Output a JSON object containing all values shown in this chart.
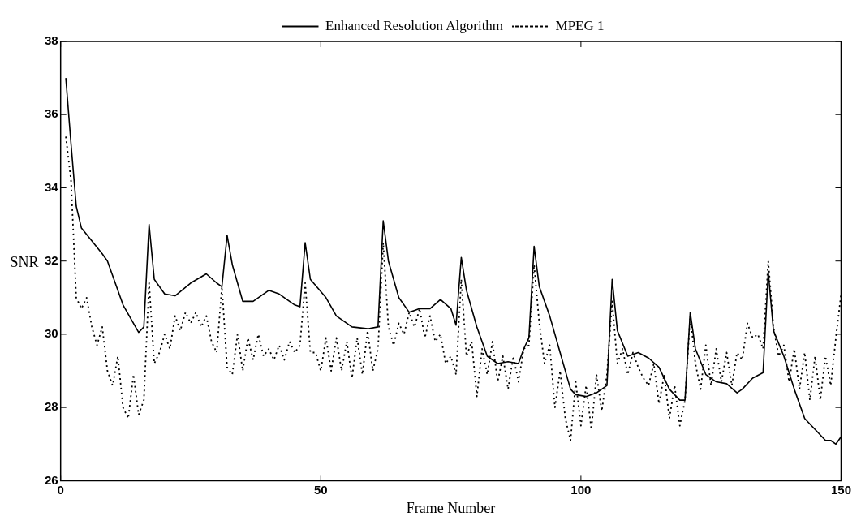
{
  "chart_data": {
    "type": "line",
    "xlabel": "Frame Number",
    "ylabel": "SNR",
    "xlim": [
      0,
      150
    ],
    "xticks": [
      0,
      50,
      100,
      150
    ],
    "ylim": [
      26,
      38
    ],
    "yticks": [
      26,
      28,
      30,
      32,
      34,
      36,
      38
    ],
    "grid": false,
    "legend": "top",
    "marker": "none",
    "series": [
      {
        "name": "Enhanced Resolution Algorithm",
        "color": "#000000",
        "line_style": "solid",
        "x": [
          1,
          2,
          3,
          4,
          8,
          9,
          12,
          15,
          16,
          17,
          18,
          20,
          22,
          25,
          28,
          30,
          31,
          32,
          33,
          35,
          37,
          40,
          42,
          45,
          46,
          47,
          48,
          51,
          53,
          56,
          59,
          61,
          62,
          63,
          65,
          67,
          69,
          71,
          73,
          75,
          76,
          77,
          78,
          80,
          82,
          84,
          86,
          88,
          89,
          90,
          91,
          92,
          94,
          96,
          98,
          99,
          101,
          103,
          105,
          106,
          107,
          109,
          111,
          113,
          115,
          117,
          119,
          120,
          121,
          122,
          124,
          126,
          128,
          130,
          131,
          133,
          135,
          136,
          137,
          139,
          141,
          143,
          145,
          147,
          148,
          149,
          150
        ],
        "values": [
          37.0,
          35.2,
          33.5,
          32.9,
          32.2,
          32.0,
          30.8,
          30.05,
          30.2,
          33.0,
          31.5,
          31.1,
          31.05,
          31.4,
          31.65,
          31.4,
          31.3,
          32.7,
          31.9,
          30.9,
          30.9,
          31.2,
          31.1,
          30.8,
          30.75,
          32.5,
          31.5,
          31.0,
          30.5,
          30.2,
          30.15,
          30.2,
          33.1,
          32.0,
          31.0,
          30.6,
          30.7,
          30.7,
          30.95,
          30.7,
          30.25,
          32.1,
          31.2,
          30.2,
          29.4,
          29.2,
          29.25,
          29.2,
          29.6,
          29.9,
          32.4,
          31.3,
          30.5,
          29.5,
          28.5,
          28.35,
          28.3,
          28.4,
          28.6,
          31.5,
          30.1,
          29.4,
          29.5,
          29.35,
          29.1,
          28.5,
          28.2,
          28.2,
          30.6,
          29.6,
          28.9,
          28.7,
          28.65,
          28.4,
          28.5,
          28.8,
          28.95,
          31.7,
          30.1,
          29.4,
          28.5,
          27.7,
          27.4,
          27.1,
          27.1,
          27.0,
          27.2
        ]
      },
      {
        "name": "MPEG 1",
        "color": "#000000",
        "line_style": "dotted",
        "x": [
          1,
          2,
          3,
          4,
          5,
          6,
          7,
          8,
          9,
          10,
          11,
          12,
          13,
          14,
          15,
          16,
          17,
          18,
          19,
          20,
          21,
          22,
          23,
          24,
          25,
          26,
          27,
          28,
          29,
          30,
          31,
          32,
          33,
          34,
          35,
          36,
          37,
          38,
          39,
          40,
          41,
          42,
          43,
          44,
          45,
          46,
          47,
          48,
          49,
          50,
          51,
          52,
          53,
          54,
          55,
          56,
          57,
          58,
          59,
          60,
          61,
          62,
          63,
          64,
          65,
          66,
          67,
          68,
          69,
          70,
          71,
          72,
          73,
          74,
          75,
          76,
          77,
          78,
          79,
          80,
          81,
          82,
          83,
          84,
          85,
          86,
          87,
          88,
          89,
          90,
          91,
          92,
          93,
          94,
          95,
          96,
          97,
          98,
          99,
          100,
          101,
          102,
          103,
          104,
          105,
          106,
          107,
          108,
          109,
          110,
          111,
          112,
          113,
          114,
          115,
          116,
          117,
          118,
          119,
          120,
          121,
          122,
          123,
          124,
          125,
          126,
          127,
          128,
          129,
          130,
          131,
          132,
          133,
          134,
          135,
          136,
          137,
          138,
          139,
          140,
          141,
          142,
          143,
          144,
          145,
          146,
          147,
          148,
          149,
          150
        ],
        "values": [
          35.4,
          34.2,
          31.0,
          30.7,
          31.0,
          30.2,
          29.7,
          30.2,
          29.0,
          28.6,
          29.4,
          28.0,
          27.7,
          28.9,
          27.8,
          28.2,
          31.4,
          29.2,
          29.5,
          30.0,
          29.6,
          30.5,
          30.1,
          30.6,
          30.3,
          30.6,
          30.2,
          30.5,
          29.8,
          29.5,
          31.3,
          29.1,
          28.9,
          30.0,
          29.0,
          29.9,
          29.3,
          30.0,
          29.4,
          29.6,
          29.3,
          29.7,
          29.3,
          29.8,
          29.5,
          29.7,
          31.4,
          29.5,
          29.5,
          29.0,
          29.9,
          29.0,
          29.9,
          29.0,
          29.8,
          28.8,
          29.9,
          28.9,
          30.1,
          29.0,
          29.6,
          32.5,
          30.2,
          29.7,
          30.3,
          30.0,
          30.6,
          30.2,
          30.7,
          29.9,
          30.5,
          29.8,
          30.0,
          29.2,
          29.4,
          28.9,
          31.5,
          29.4,
          29.8,
          28.3,
          29.6,
          28.9,
          29.8,
          28.7,
          29.4,
          28.5,
          29.4,
          28.7,
          29.6,
          29.7,
          31.9,
          30.3,
          29.2,
          29.7,
          28.0,
          29.0,
          27.7,
          27.1,
          28.7,
          27.5,
          28.6,
          27.4,
          28.9,
          27.9,
          28.9,
          30.9,
          29.2,
          29.6,
          28.9,
          29.5,
          29.1,
          28.8,
          28.6,
          29.2,
          28.1,
          28.9,
          27.7,
          28.6,
          27.5,
          28.2,
          30.5,
          29.2,
          28.5,
          29.7,
          28.6,
          29.6,
          28.7,
          29.5,
          28.6,
          29.5,
          29.3,
          30.3,
          29.9,
          30.0,
          29.6,
          32.0,
          30.2,
          29.4,
          29.7,
          28.7,
          29.6,
          28.5,
          29.5,
          28.2,
          29.4,
          28.2,
          29.4,
          28.6,
          29.9,
          31.1
        ]
      }
    ]
  }
}
